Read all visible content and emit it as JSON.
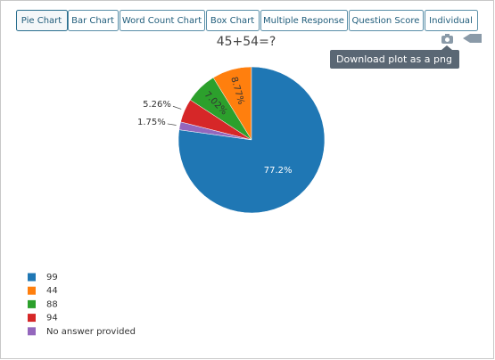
{
  "tabs": [
    "Pie Chart",
    "Bar Chart",
    "Word Count Chart",
    "Box Chart",
    "Multiple Response",
    "Question Score",
    "Individual"
  ],
  "tooltip": "Download plot as a png",
  "chart_data": {
    "type": "pie",
    "title": "45+54=?",
    "categories": [
      "99",
      "44",
      "88",
      "94",
      "No answer provided"
    ],
    "values": [
      77.2,
      8.77,
      7.02,
      5.26,
      1.75
    ],
    "value_labels": [
      "77.2%",
      "8.77%",
      "7.02%",
      "5.26%",
      "1.75%"
    ],
    "colors": [
      "#1f77b4",
      "#ff7f0e",
      "#2ca02c",
      "#d62728",
      "#9467bd"
    ]
  }
}
